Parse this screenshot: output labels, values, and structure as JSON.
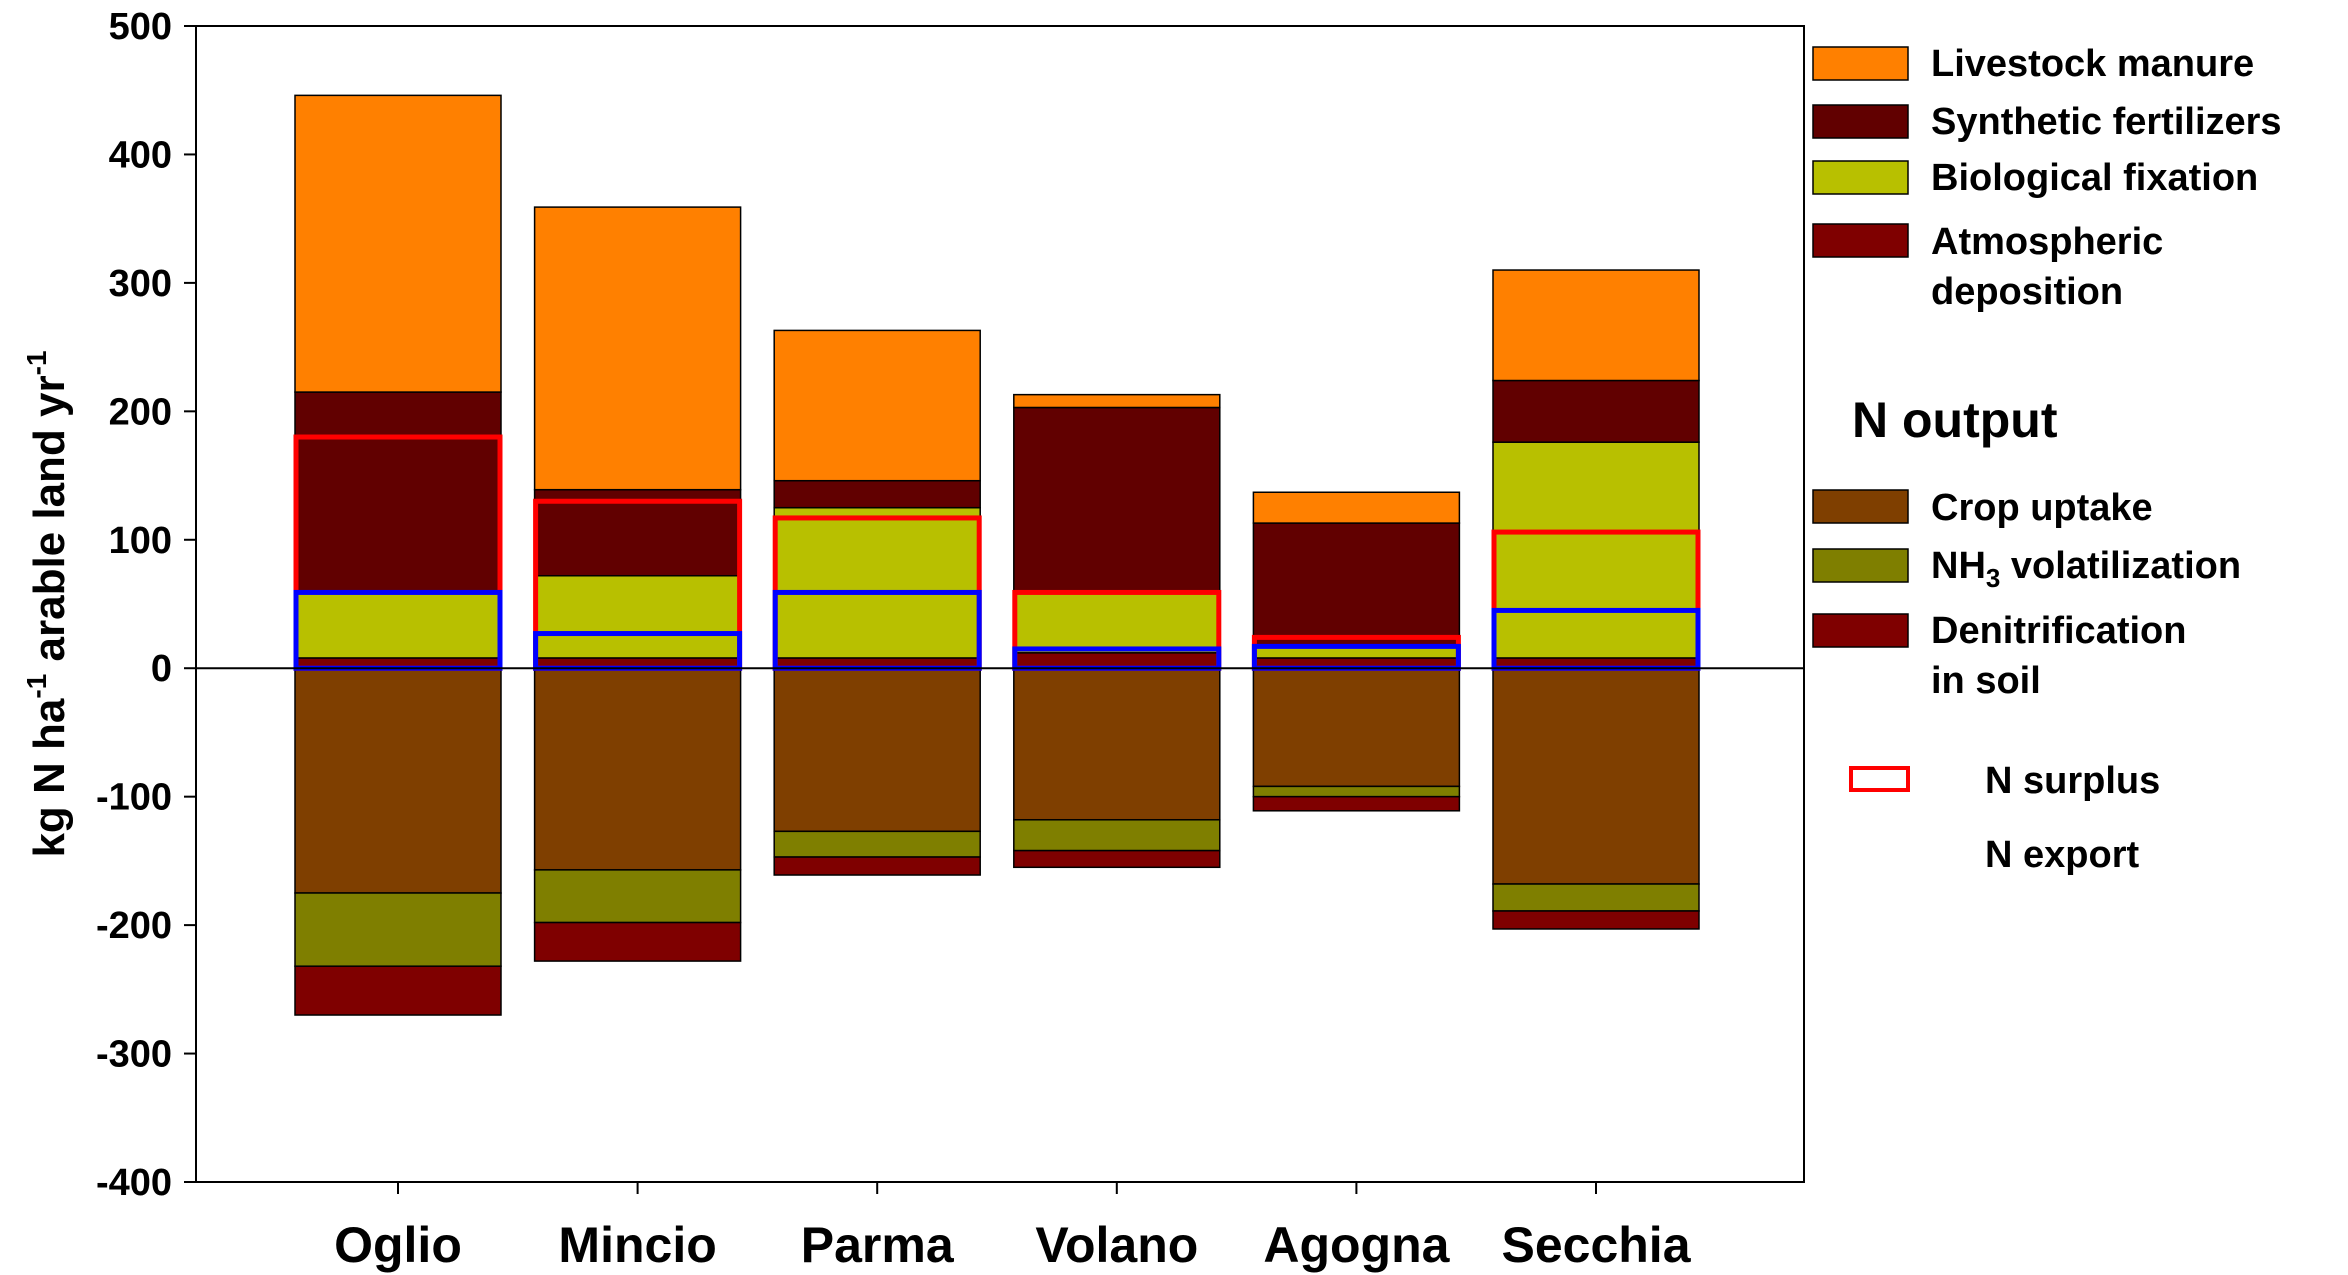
{
  "chart_data": {
    "type": "bar",
    "stacked": true,
    "categories": [
      "Oglio",
      "Mincio",
      "Parma",
      "Volano",
      "Agogna",
      "Secchia"
    ],
    "ylabel_main": "kg N ha",
    "ylabel_sup1": "-1",
    "ylabel_mid": " arable land yr",
    "ylabel_sup2": "-1",
    "ylim": [
      -400,
      500
    ],
    "yticks": [
      500,
      400,
      300,
      200,
      100,
      0,
      -100,
      -200,
      -300,
      -400
    ],
    "input_series": [
      {
        "name": "Atmospheric deposition",
        "color": "#7f0000",
        "values": [
          8,
          8,
          8,
          12,
          8,
          8
        ]
      },
      {
        "name": "Biological fixation",
        "color": "#b8c000",
        "values": [
          52,
          64,
          117,
          48,
          10,
          168
        ]
      },
      {
        "name": "Synthetic fertilizers",
        "color": "#610000",
        "values": [
          155,
          67,
          21,
          143,
          95,
          48
        ]
      },
      {
        "name": "Livestock manure",
        "color": "#ff8000",
        "values": [
          231,
          220,
          117,
          10,
          24,
          86
        ]
      }
    ],
    "output_series": [
      {
        "name": "Crop uptake",
        "color": "#7f3f00",
        "values": [
          175,
          157,
          127,
          118,
          92,
          168
        ]
      },
      {
        "name": "NH3 volatilization",
        "color": "#7f7f00",
        "values": [
          57,
          41,
          20,
          24,
          8,
          21
        ]
      },
      {
        "name": "Denitrification in soil",
        "color": "#7f0000",
        "values": [
          38,
          30,
          14,
          13,
          11,
          14
        ]
      }
    ],
    "n_surplus": {
      "name": "N surplus",
      "color": "#ff0000",
      "values": [
        180,
        130,
        117,
        59,
        24,
        106
      ]
    },
    "n_export": {
      "name": "N export",
      "color": "#0000ff",
      "values": [
        59,
        27,
        59,
        15,
        17,
        45
      ]
    }
  },
  "legend": {
    "input_items": [
      {
        "label": "Livestock manure",
        "color": "#ff8000"
      },
      {
        "label": "Synthetic fertilizers",
        "color": "#610000"
      },
      {
        "label": "Biological fixation",
        "color": "#b8c000"
      },
      {
        "label": "Atmospheric",
        "label2": "deposition",
        "color": "#7f0000"
      }
    ],
    "output_title": "N output",
    "output_items": [
      {
        "label": "Crop uptake",
        "color": "#7f3f00"
      },
      {
        "label": "NH",
        "sub": "3",
        "label_rest": " volatilization",
        "color": "#7f7f00"
      },
      {
        "label": "Denitrification",
        "label2": "in soil",
        "color": "#7f0000"
      }
    ],
    "surplus_label": "N surplus",
    "export_label": "N export"
  }
}
